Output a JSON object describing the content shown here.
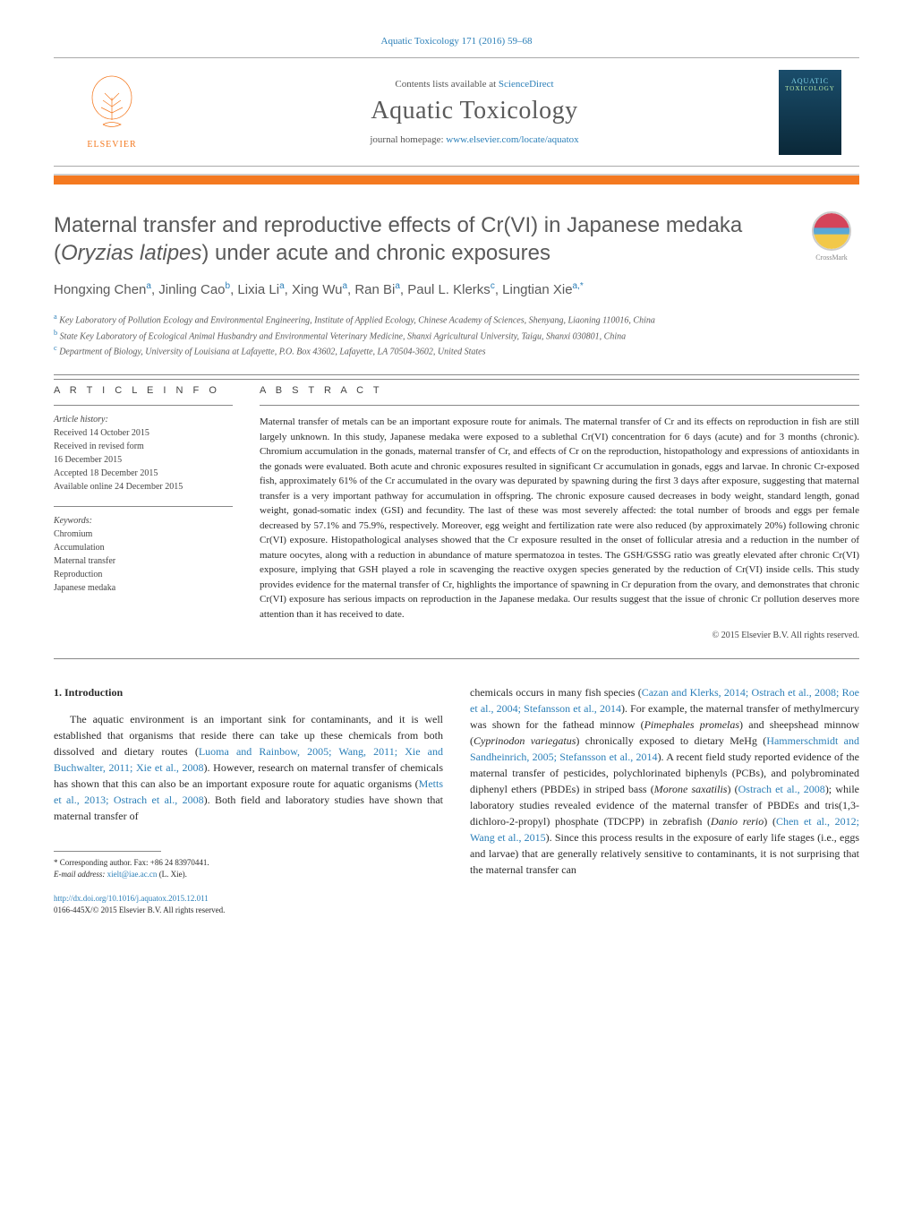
{
  "header": {
    "top_citation": "Aquatic Toxicology 171 (2016) 59–68",
    "contents_prefix": "Contents lists available at ",
    "contents_link": "ScienceDirect",
    "journal_name": "Aquatic Toxicology",
    "homepage_prefix": "journal homepage: ",
    "homepage_link": "www.elsevier.com/locate/aquatox",
    "elsevier_label": "ELSEVIER",
    "cover_line1": "AQUATIC",
    "cover_line2": "TOXICOLOGY"
  },
  "crossmark_label": "CrossMark",
  "title_html": "Maternal transfer and reproductive effects of Cr(VI) in Japanese medaka (<em>Oryzias latipes</em>) under acute and chronic exposures",
  "authors_html": "Hongxing Chen<sup>a</sup>, Jinling Cao<sup>b</sup>, Lixia Li<sup>a</sup>, Xing Wu<sup>a</sup>, Ran Bi<sup>a</sup>, Paul L. Klerks<sup>c</sup>, Lingtian Xie<sup>a,*</sup>",
  "affiliations": [
    {
      "sup": "a",
      "text": "Key Laboratory of Pollution Ecology and Environmental Engineering, Institute of Applied Ecology, Chinese Academy of Sciences, Shenyang, Liaoning 110016, China"
    },
    {
      "sup": "b",
      "text": "State Key Laboratory of Ecological Animal Husbandry and Environmental Veterinary Medicine, Shanxi Agricultural University, Taigu, Shanxi 030801, China"
    },
    {
      "sup": "c",
      "text": "Department of Biology, University of Louisiana at Lafayette, P.O. Box 43602, Lafayette, LA 70504-3602, United States"
    }
  ],
  "article_info": {
    "heading": "A R T I C L E   I N F O",
    "history_label": "Article history:",
    "history": [
      "Received 14 October 2015",
      "Received in revised form",
      "16 December 2015",
      "Accepted 18 December 2015",
      "Available online 24 December 2015"
    ],
    "keywords_label": "Keywords:",
    "keywords": [
      "Chromium",
      "Accumulation",
      "Maternal transfer",
      "Reproduction",
      "Japanese medaka"
    ]
  },
  "abstract": {
    "heading": "A B S T R A C T",
    "text": "Maternal transfer of metals can be an important exposure route for animals. The maternal transfer of Cr and its effects on reproduction in fish are still largely unknown. In this study, Japanese medaka were exposed to a sublethal Cr(VI) concentration for 6 days (acute) and for 3 months (chronic). Chromium accumulation in the gonads, maternal transfer of Cr, and effects of Cr on the reproduction, histopathology and expressions of antioxidants in the gonads were evaluated. Both acute and chronic exposures resulted in significant Cr accumulation in gonads, eggs and larvae. In chronic Cr-exposed fish, approximately 61% of the Cr accumulated in the ovary was depurated by spawning during the first 3 days after exposure, suggesting that maternal transfer is a very important pathway for accumulation in offspring. The chronic exposure caused decreases in body weight, standard length, gonad weight, gonad-somatic index (GSI) and fecundity. The last of these was most severely affected: the total number of broods and eggs per female decreased by 57.1% and 75.9%, respectively. Moreover, egg weight and fertilization rate were also reduced (by approximately 20%) following chronic Cr(VI) exposure. Histopathological analyses showed that the Cr exposure resulted in the onset of follicular atresia and a reduction in the number of mature oocytes, along with a reduction in abundance of mature spermatozoa in testes. The GSH/GSSG ratio was greatly elevated after chronic Cr(VI) exposure, implying that GSH played a role in scavenging the reactive oxygen species generated by the reduction of Cr(VI) inside cells. This study provides evidence for the maternal transfer of Cr, highlights the importance of spawning in Cr depuration from the ovary, and demonstrates that chronic Cr(VI) exposure has serious impacts on reproduction in the Japanese medaka. Our results suggest that the issue of chronic Cr pollution deserves more attention than it has received to date.",
    "copyright": "© 2015 Elsevier B.V. All rights reserved."
  },
  "intro": {
    "heading": "1. Introduction",
    "col1_html": "The aquatic environment is an important sink for contaminants, and it is well established that organisms that reside there can take up these chemicals from both dissolved and dietary routes (<a href='#'>Luoma and Rainbow, 2005; Wang, 2011; Xie and Buchwalter, 2011; Xie et al., 2008</a>). However, research on maternal transfer of chemicals has shown that this can also be an important exposure route for aquatic organisms (<a href='#'>Metts et al., 2013; Ostrach et al., 2008</a>). Both field and laboratory studies have shown that maternal transfer of",
    "col2_html": "chemicals occurs in many fish species (<a href='#'>Cazan and Klerks, 2014; Ostrach et al., 2008; Roe et al., 2004; Stefansson et al., 2014</a>). For example, the maternal transfer of methylmercury was shown for the fathead minnow (<em>Pimephales promelas</em>) and sheepshead minnow (<em>Cyprinodon variegatus</em>) chronically exposed to dietary MeHg (<a href='#'>Hammerschmidt and Sandheinrich, 2005; Stefansson et al., 2014</a>). A recent field study reported evidence of the maternal transfer of pesticides, polychlorinated biphenyls (PCBs), and polybrominated diphenyl ethers (PBDEs) in striped bass (<em>Morone saxatilis</em>) (<a href='#'>Ostrach et al., 2008</a>); while laboratory studies revealed evidence of the maternal transfer of PBDEs and tris(1,3-dichloro-2-propyl) phosphate (TDCPP) in zebrafish (<em>Danio rerio</em>) (<a href='#'>Chen et al., 2012; Wang et al., 2015</a>). Since this process results in the exposure of early life stages (i.e., eggs and larvae) that are generally relatively sensitive to contaminants, it is not surprising that the maternal transfer can"
  },
  "footnote": {
    "corr_label": "* Corresponding author. Fax: +86 24 83970441.",
    "email_label": "E-mail address: ",
    "email": "xielt@iae.ac.cn",
    "email_suffix": " (L. Xie)."
  },
  "footer": {
    "doi": "http://dx.doi.org/10.1016/j.aquatox.2015.12.011",
    "issn_line": "0166-445X/© 2015 Elsevier B.V. All rights reserved."
  },
  "colors": {
    "orange": "#f47920",
    "link_blue": "#2b7fb8",
    "text_gray": "#5a5a5a"
  }
}
